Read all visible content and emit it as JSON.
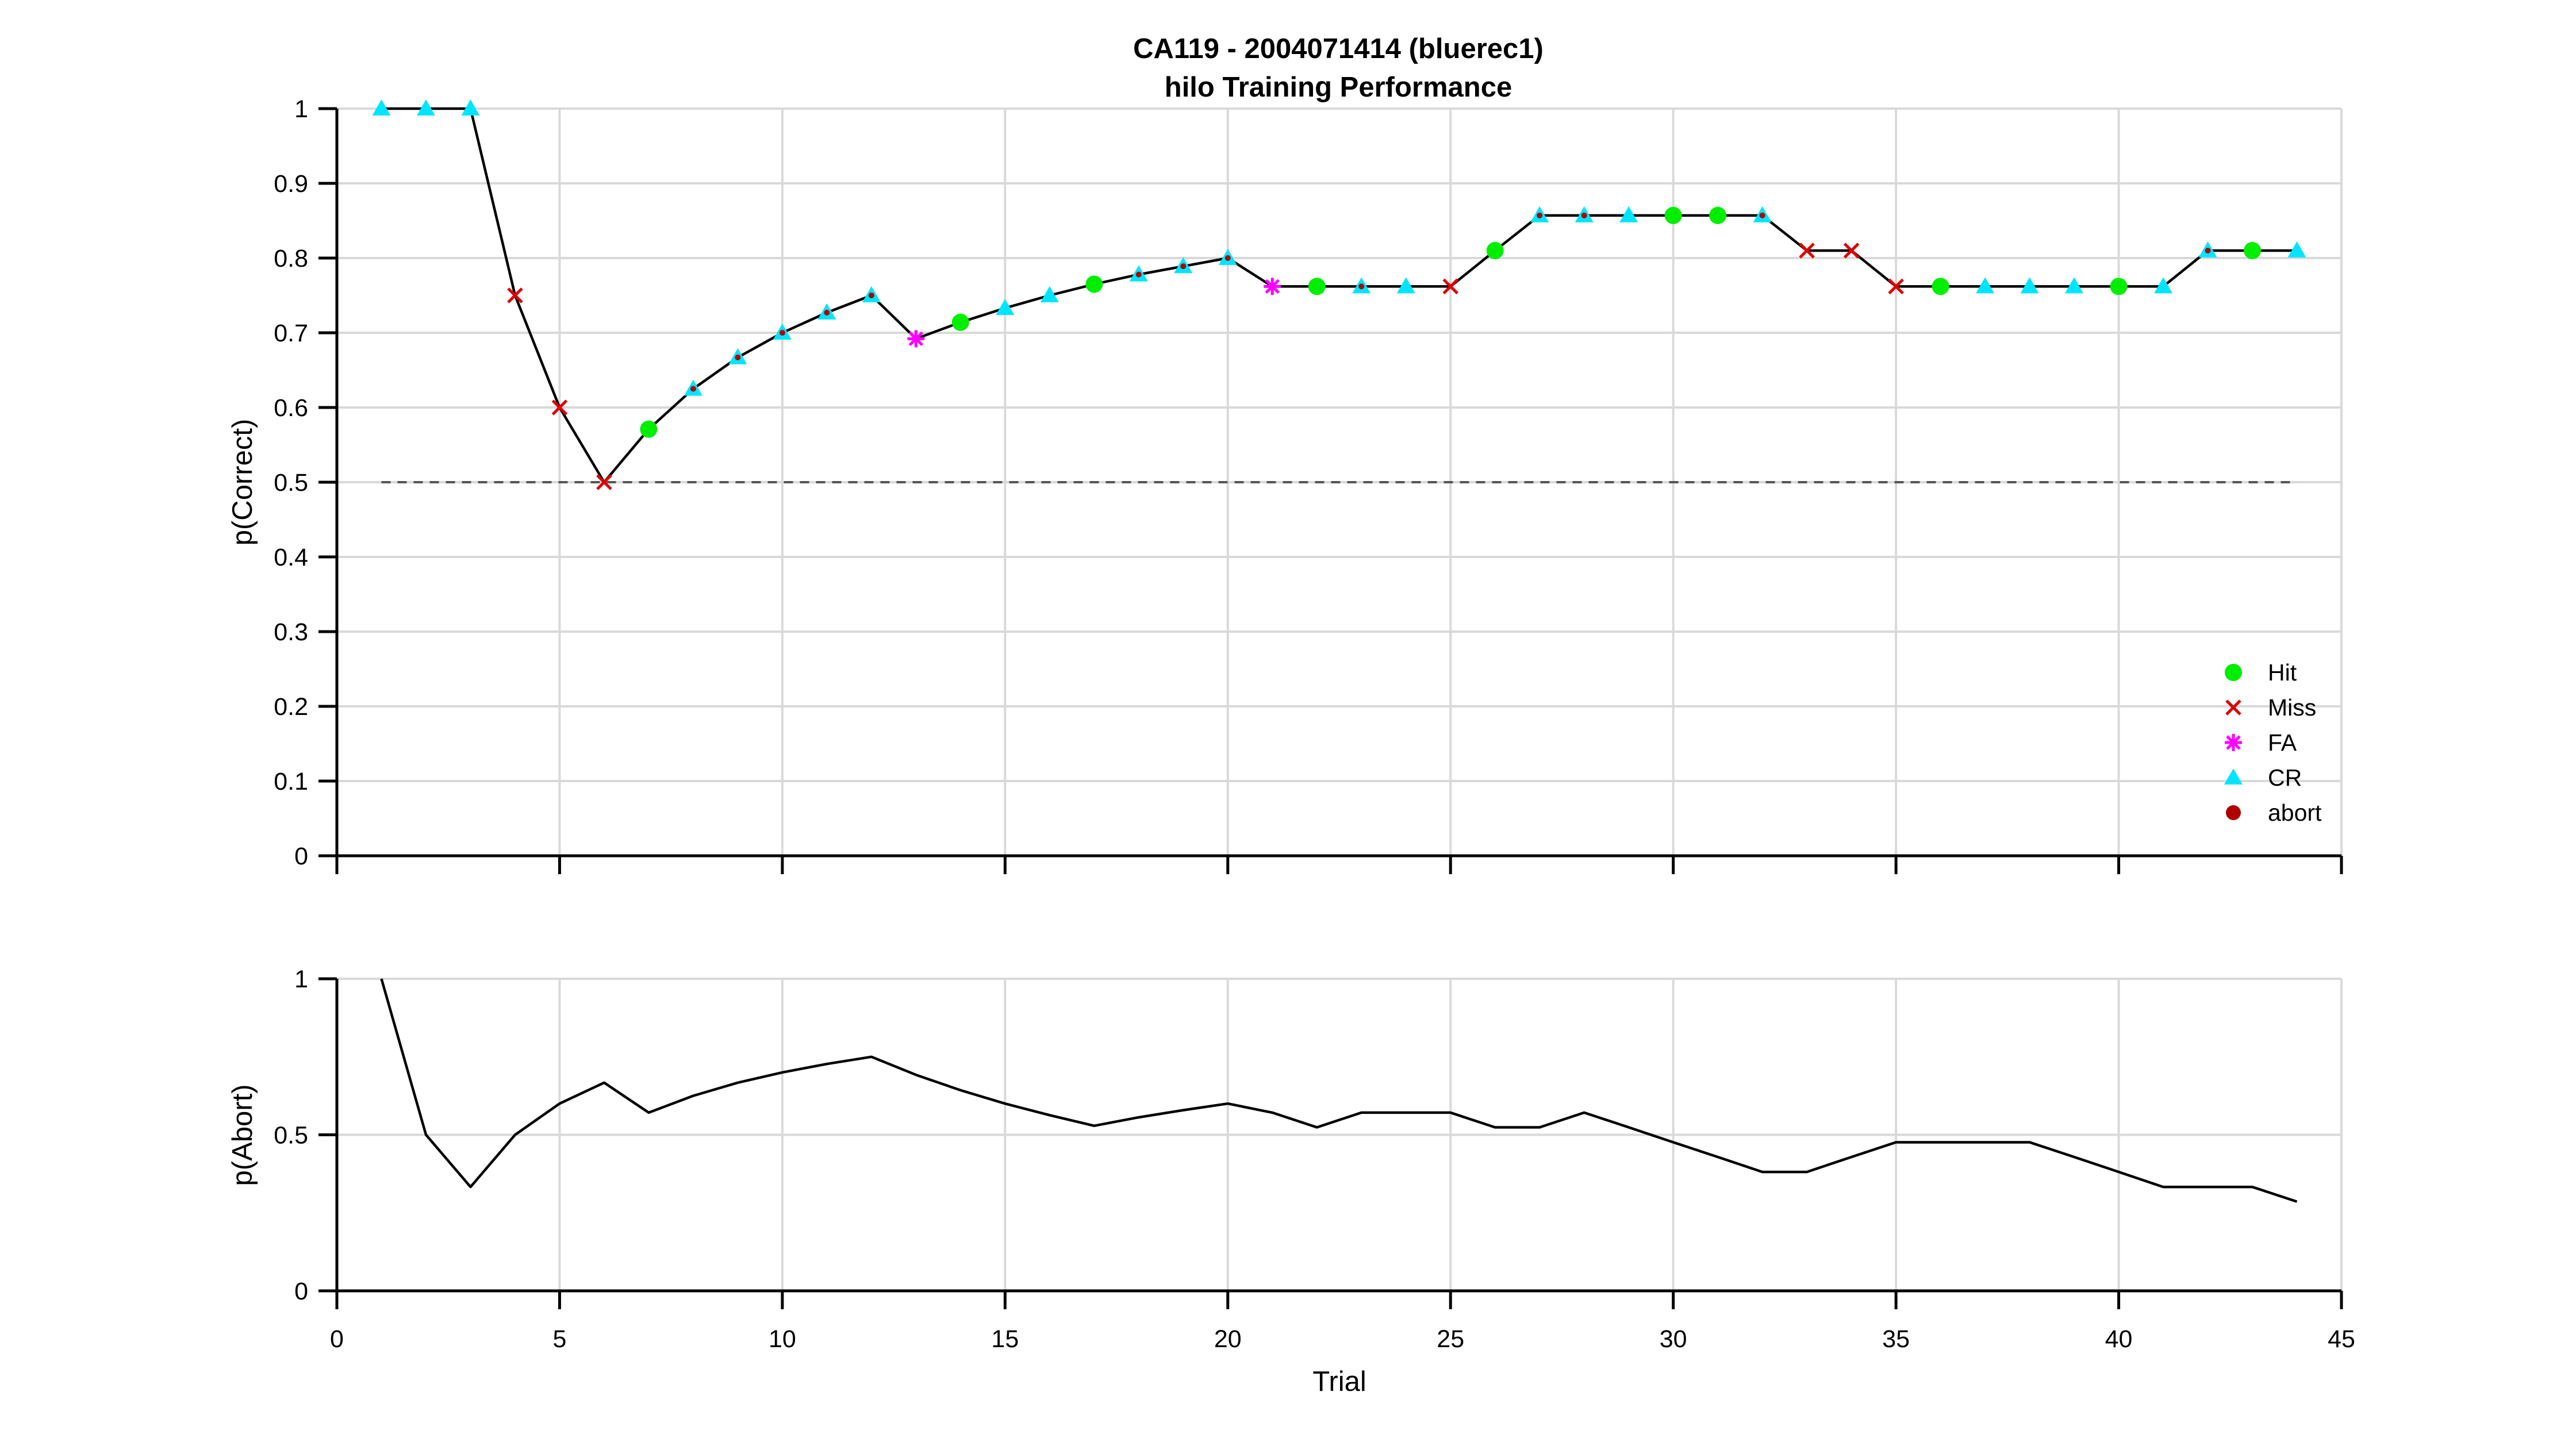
{
  "figure": {
    "title_line1": "CA119 - 2004071414 (bluerec1)",
    "title_line2": "hilo Training Performance"
  },
  "colors": {
    "hit": "#00ee00",
    "miss": "#dd0000",
    "fa": "#ff00ff",
    "cr": "#00e5ff",
    "abort": "#b00000",
    "line": "#000000",
    "grid": "#d9d9d9",
    "chance_line": "#555555"
  },
  "chart_data": [
    {
      "type": "line",
      "title": "CA119 - 2004071414 (bluerec1)\nhilo Training Performance",
      "xlabel": "",
      "ylabel": "p(Correct)",
      "xlim": [
        0,
        45
      ],
      "ylim": [
        0,
        1
      ],
      "xticks": [
        0,
        5,
        10,
        15,
        20,
        25,
        30,
        35,
        40,
        45
      ],
      "yticks": [
        0,
        0.1,
        0.2,
        0.3,
        0.4,
        0.5,
        0.6,
        0.7,
        0.8,
        0.9,
        1
      ],
      "ytick_labels": [
        "0",
        "0.1",
        "0.2",
        "0.3",
        "0.4",
        "0.5",
        "0.6",
        "0.7",
        "0.8",
        "0.9",
        "1"
      ],
      "grid": true,
      "reference_line": 0.5,
      "legend_position": "lower-right",
      "legend": [
        "Hit",
        "Miss",
        "FA",
        "CR",
        "abort"
      ],
      "x": [
        1,
        2,
        3,
        4,
        5,
        6,
        7,
        8,
        9,
        10,
        11,
        12,
        13,
        14,
        15,
        16,
        17,
        18,
        19,
        20,
        21,
        22,
        23,
        24,
        25,
        26,
        27,
        28,
        29,
        30,
        31,
        32,
        33,
        34,
        35,
        36,
        37,
        38,
        39,
        40,
        41,
        42,
        43,
        44
      ],
      "y": [
        1,
        1,
        1,
        0.75,
        0.6,
        0.5,
        0.571,
        0.625,
        0.667,
        0.7,
        0.727,
        0.75,
        0.692,
        0.714,
        0.733,
        0.75,
        0.765,
        0.778,
        0.789,
        0.8,
        0.762,
        0.762,
        0.762,
        0.762,
        0.762,
        0.81,
        0.857,
        0.857,
        0.857,
        0.857,
        0.857,
        0.857,
        0.81,
        0.81,
        0.762,
        0.762,
        0.762,
        0.762,
        0.762,
        0.762,
        0.762,
        0.81,
        0.81,
        0.81
      ],
      "outcomes": [
        "CR",
        "CR",
        "CR",
        "Miss",
        "Miss",
        "Miss",
        "Hit",
        "CR",
        "CR",
        "CR",
        "CR",
        "CR",
        "FA",
        "Hit",
        "CR",
        "CR",
        "Hit",
        "CR",
        "CR",
        "CR",
        "FA",
        "Hit",
        "CR",
        "CR",
        "Miss",
        "Hit",
        "CR",
        "CR",
        "CR",
        "Hit",
        "Hit",
        "CR",
        "Miss",
        "Miss",
        "Miss",
        "Hit",
        "CR",
        "CR",
        "CR",
        "Hit",
        "CR",
        "CR",
        "Hit",
        "CR"
      ],
      "abort_overlay": [
        false,
        false,
        false,
        false,
        false,
        false,
        false,
        true,
        true,
        true,
        true,
        true,
        false,
        false,
        false,
        false,
        false,
        true,
        true,
        true,
        false,
        false,
        true,
        false,
        false,
        false,
        true,
        true,
        false,
        false,
        false,
        true,
        false,
        false,
        false,
        false,
        false,
        false,
        false,
        false,
        false,
        true,
        false,
        false
      ]
    },
    {
      "type": "line",
      "xlabel": "Trial",
      "ylabel": "p(Abort)",
      "xlim": [
        0,
        45
      ],
      "ylim": [
        0,
        1
      ],
      "xticks": [
        0,
        5,
        10,
        15,
        20,
        25,
        30,
        35,
        40,
        45
      ],
      "xtick_labels": [
        "0",
        "5",
        "10",
        "15",
        "20",
        "25",
        "30",
        "35",
        "40",
        "45"
      ],
      "yticks": [
        0,
        0.5,
        1
      ],
      "ytick_labels": [
        "0",
        "0.5",
        "1"
      ],
      "grid": true,
      "x": [
        1,
        2,
        3,
        4,
        5,
        6,
        7,
        8,
        9,
        10,
        11,
        12,
        13,
        14,
        15,
        16,
        17,
        18,
        19,
        20,
        21,
        22,
        23,
        24,
        25,
        26,
        27,
        28,
        29,
        30,
        31,
        32,
        33,
        34,
        35,
        36,
        37,
        38,
        39,
        40,
        41,
        42,
        43,
        44
      ],
      "y": [
        1,
        0.5,
        0.333,
        0.5,
        0.6,
        0.667,
        0.571,
        0.625,
        0.667,
        0.7,
        0.727,
        0.75,
        0.692,
        0.643,
        0.6,
        0.563,
        0.529,
        0.556,
        0.579,
        0.6,
        0.571,
        0.524,
        0.571,
        0.571,
        0.571,
        0.524,
        0.524,
        0.571,
        0.524,
        0.476,
        0.429,
        0.381,
        0.381,
        0.429,
        0.476,
        0.476,
        0.476,
        0.476,
        0.429,
        0.381,
        0.333,
        0.333,
        0.333,
        0.286
      ]
    }
  ]
}
